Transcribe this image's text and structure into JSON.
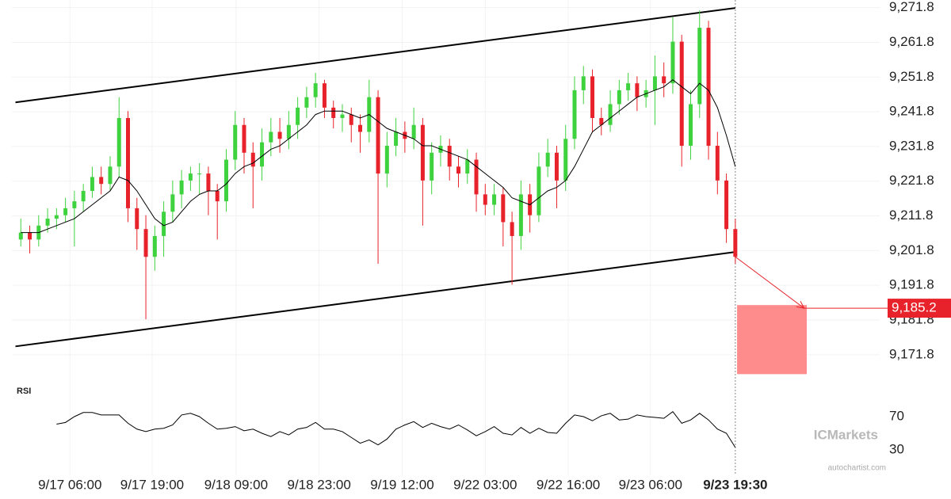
{
  "chart_data": {
    "type": "candlestick",
    "ohlc": [
      [
        9205,
        9211,
        9203,
        9207
      ],
      [
        9207,
        9209,
        9201,
        9205
      ],
      [
        9205,
        9212,
        9203,
        9209
      ],
      [
        9209,
        9214,
        9207,
        9211
      ],
      [
        9211,
        9214,
        9208,
        9212
      ],
      [
        9212,
        9217,
        9210,
        9214
      ],
      [
        9214,
        9219,
        9203,
        9216
      ],
      [
        9216,
        9221,
        9213,
        9219
      ],
      [
        9219,
        9226,
        9217,
        9223
      ],
      [
        9223,
        9226,
        9218,
        9221
      ],
      [
        9221,
        9229,
        9219,
        9226
      ],
      [
        9226,
        9246,
        9223,
        9240
      ],
      [
        9240,
        9242,
        9210,
        9214
      ],
      [
        9214,
        9217,
        9202,
        9208
      ],
      [
        9208,
        9212,
        9182,
        9200
      ],
      [
        9200,
        9209,
        9196,
        9206
      ],
      [
        9206,
        9216,
        9200,
        9213
      ],
      [
        9213,
        9222,
        9210,
        9218
      ],
      [
        9218,
        9225,
        9214,
        9222
      ],
      [
        9222,
        9226,
        9219,
        9224
      ],
      [
        9224,
        9227,
        9218,
        9224
      ],
      [
        9224,
        9226,
        9212,
        9219
      ],
      [
        9219,
        9221,
        9205,
        9216
      ],
      [
        9216,
        9231,
        9213,
        9228
      ],
      [
        9228,
        9242,
        9225,
        9238
      ],
      [
        9238,
        9240,
        9224,
        9230
      ],
      [
        9230,
        9233,
        9214,
        9226
      ],
      [
        9226,
        9237,
        9222,
        9233
      ],
      [
        9233,
        9240,
        9229,
        9236
      ],
      [
        9236,
        9240,
        9230,
        9234
      ],
      [
        9234,
        9242,
        9231,
        9238
      ],
      [
        9238,
        9246,
        9234,
        9243
      ],
      [
        9243,
        9249,
        9240,
        9246
      ],
      [
        9246,
        9253,
        9243,
        9250
      ],
      [
        9250,
        9251,
        9240,
        9243
      ],
      [
        9243,
        9245,
        9237,
        9240
      ],
      [
        9240,
        9244,
        9236,
        9241
      ],
      [
        9241,
        9243,
        9233,
        9238
      ],
      [
        9238,
        9241,
        9230,
        9236
      ],
      [
        9236,
        9251,
        9233,
        9246
      ],
      [
        9246,
        9248,
        9198,
        9224
      ],
      [
        9224,
        9236,
        9220,
        9232
      ],
      [
        9232,
        9240,
        9229,
        9236
      ],
      [
        9236,
        9239,
        9230,
        9234
      ],
      [
        9234,
        9243,
        9231,
        9238
      ],
      [
        9238,
        9240,
        9209,
        9222
      ],
      [
        9222,
        9233,
        9218,
        9230
      ],
      [
        9230,
        9235,
        9226,
        9232
      ],
      [
        9232,
        9234,
        9222,
        9226
      ],
      [
        9226,
        9229,
        9220,
        9224
      ],
      [
        9224,
        9231,
        9221,
        9228
      ],
      [
        9228,
        9230,
        9213,
        9218
      ],
      [
        9218,
        9221,
        9212,
        9215
      ],
      [
        9215,
        9221,
        9212,
        9218
      ],
      [
        9218,
        9220,
        9203,
        9210
      ],
      [
        9210,
        9213,
        9192,
        9206
      ],
      [
        9206,
        9222,
        9202,
        9218
      ],
      [
        9218,
        9221,
        9207,
        9212
      ],
      [
        9212,
        9230,
        9210,
        9226
      ],
      [
        9226,
        9234,
        9223,
        9230
      ],
      [
        9230,
        9232,
        9214,
        9222
      ],
      [
        9222,
        9238,
        9219,
        9234
      ],
      [
        9234,
        9252,
        9231,
        9248
      ],
      [
        9248,
        9255,
        9244,
        9252
      ],
      [
        9252,
        9254,
        9236,
        9240
      ],
      [
        9240,
        9243,
        9235,
        9238
      ],
      [
        9238,
        9248,
        9236,
        9244
      ],
      [
        9244,
        9251,
        9241,
        9248
      ],
      [
        9248,
        9253,
        9245,
        9250
      ],
      [
        9250,
        9252,
        9242,
        9246
      ],
      [
        9246,
        9251,
        9243,
        9248
      ],
      [
        9248,
        9258,
        9238,
        9252
      ],
      [
        9252,
        9256,
        9246,
        9250
      ],
      [
        9250,
        9269,
        9247,
        9262
      ],
      [
        9262,
        9264,
        9226,
        9232
      ],
      [
        9232,
        9248,
        9228,
        9244
      ],
      [
        9244,
        9271,
        9240,
        9266
      ],
      [
        9266,
        9268,
        9228,
        9232
      ],
      [
        9232,
        9236,
        9218,
        9222
      ],
      [
        9222,
        9224,
        9204,
        9208
      ],
      [
        9208,
        9211,
        9198,
        9200
      ]
    ],
    "up_color": "#3ed23e",
    "down_color": "#e8222a",
    "ma": [
      9207,
      9207,
      9207,
      9208,
      9209,
      9210,
      9211,
      9213,
      9215,
      9217,
      9219,
      9223,
      9222,
      9219,
      9215,
      9211,
      9209,
      9210,
      9213,
      9216,
      9218,
      9219,
      9219,
      9221,
      9224,
      9226,
      9227,
      9229,
      9231,
      9232,
      9234,
      9236,
      9238,
      9241,
      9242,
      9242,
      9242,
      9241,
      9240,
      9241,
      9239,
      9237,
      9236,
      9235,
      9234,
      9232,
      9232,
      9231,
      9230,
      9229,
      9228,
      9226,
      9224,
      9222,
      9220,
      9217,
      9216,
      9215,
      9217,
      9219,
      9220,
      9222,
      9226,
      9231,
      9236,
      9238,
      9240,
      9242,
      9244,
      9246,
      9247,
      9248,
      9249,
      9251,
      9249,
      9247,
      9250,
      9248,
      9243,
      9235,
      9226
    ],
    "xlim": [
      -1,
      88
    ],
    "ylim": [
      9164,
      9274
    ],
    "yticks": [
      {
        "value": 9271.8,
        "label": "9,271.8"
      },
      {
        "value": 9261.8,
        "label": "9,261.8"
      },
      {
        "value": 9251.8,
        "label": "9,251.8"
      },
      {
        "value": 9241.8,
        "label": "9,241.8"
      },
      {
        "value": 9231.8,
        "label": "9,231.8"
      },
      {
        "value": 9221.8,
        "label": "9,221.8"
      },
      {
        "value": 9211.8,
        "label": "9,211.8"
      },
      {
        "value": 9201.8,
        "label": "9,201.8"
      },
      {
        "value": 9191.8,
        "label": "9,191.8"
      },
      {
        "value": 9181.8,
        "label": "9,181.8"
      },
      {
        "value": 9171.8,
        "label": "9,171.8"
      }
    ],
    "xticks": [
      {
        "value": 5.5,
        "label": "9/17 06:00"
      },
      {
        "value": 14.7,
        "label": "9/17 19:00"
      },
      {
        "value": 24.1,
        "label": "9/18 09:00"
      },
      {
        "value": 33.4,
        "label": "9/18 23:00"
      },
      {
        "value": 42.7,
        "label": "9/19 12:00"
      },
      {
        "value": 52,
        "label": "9/22 03:00"
      },
      {
        "value": 61.3,
        "label": "9/22 16:00"
      },
      {
        "value": 70.5,
        "label": "9/23 06:00"
      },
      {
        "value": 80,
        "label": "9/23 19:30"
      }
    ],
    "grid": true,
    "channel": {
      "upper": {
        "x": [
          -0.6,
          80
        ],
        "y": [
          9244.5,
          9271.7
        ]
      },
      "lower": {
        "x": [
          -0.6,
          80
        ],
        "y": [
          9174.2,
          9201.4
        ]
      }
    },
    "forecast": {
      "x": [
        80.2,
        88
      ],
      "y": [
        9166.2,
        9186.1
      ],
      "arrow_x": [
        80,
        87.7
      ],
      "arrow_y": [
        9200,
        9185.2
      ],
      "target": 9185.2,
      "target_label": "9,185.2",
      "color": "#ff8c8c",
      "line_color": "#e8222a"
    },
    "rsi": {
      "title": "RSI",
      "values": [
        null,
        null,
        null,
        null,
        61,
        63,
        70,
        75,
        75,
        72,
        72,
        72,
        62,
        55,
        52,
        55,
        56,
        60,
        72,
        74,
        70,
        62,
        55,
        56,
        58,
        53,
        55,
        50,
        46,
        52,
        48,
        55,
        57,
        63,
        55,
        55,
        52,
        45,
        38,
        42,
        36,
        43,
        55,
        60,
        64,
        57,
        62,
        58,
        55,
        60,
        54,
        47,
        52,
        58,
        50,
        48,
        57,
        50,
        56,
        51,
        50,
        62,
        72,
        70,
        65,
        71,
        74,
        66,
        67,
        72,
        70,
        69,
        68,
        76,
        62,
        66,
        74,
        66,
        55,
        50,
        33
      ],
      "ylim": [
        20,
        100
      ],
      "yticks": [
        70,
        30
      ]
    },
    "brand": "ICMarkets",
    "source": "autochartist.com"
  }
}
